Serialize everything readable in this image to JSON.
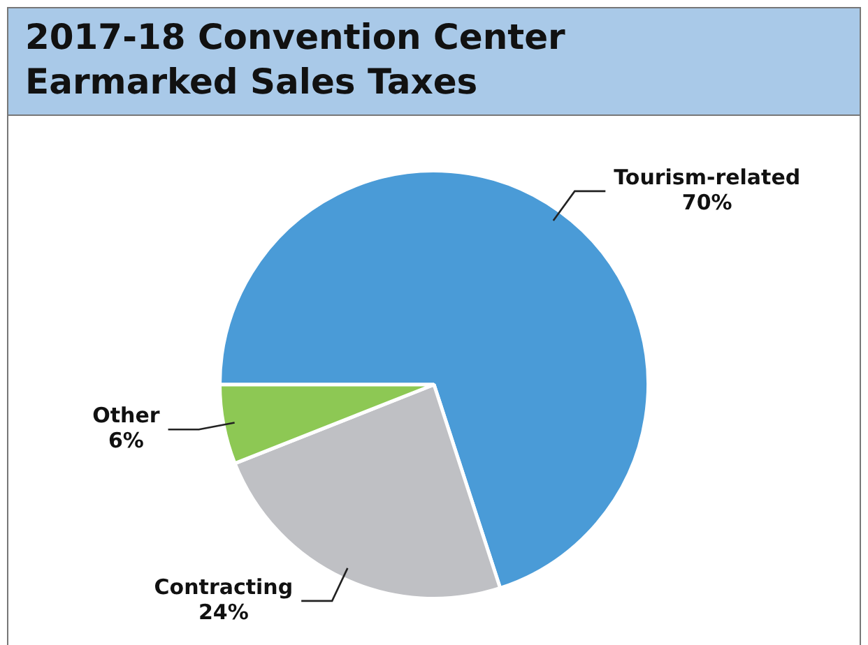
{
  "chart_data": {
    "type": "pie",
    "title": "2017-18 Convention Center Earmarked Sales Taxes",
    "categories": [
      "Tourism-related",
      "Contracting",
      "Other"
    ],
    "values": [
      70,
      24,
      6
    ],
    "colors": [
      "#4a9bd7",
      "#bfc0c4",
      "#8dc854"
    ],
    "value_labels": [
      "70%",
      "24%",
      "6%"
    ],
    "legend": false
  }
}
